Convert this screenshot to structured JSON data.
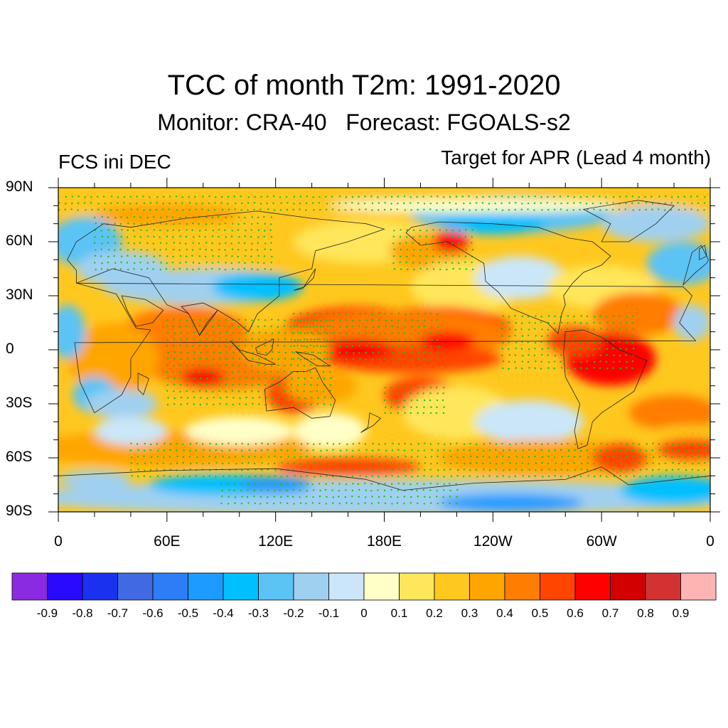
{
  "title": "TCC of month T2m: 1991-2020",
  "subtitle": "Monitor: CRA-40   Forecast: FGOALS-s2",
  "left_string": "FCS ini DEC",
  "right_string": "Target for APR (Lead 4 month)",
  "lat_labels": [
    "90N",
    "60N",
    "30N",
    "0",
    "30S",
    "60S",
    "90S"
  ],
  "lon_labels": [
    "0",
    "60E",
    "120E",
    "180E",
    "120W",
    "60W",
    "0"
  ],
  "colorbar": {
    "colors": [
      "#8a2be2",
      "#2a0aff",
      "#1a32f0",
      "#4169e1",
      "#2e7cf6",
      "#1e9bff",
      "#00bfff",
      "#5cc3f5",
      "#a0d0f0",
      "#cae6f8",
      "#ffffc8",
      "#ffe65a",
      "#ffc81e",
      "#ffa500",
      "#ff7d00",
      "#ff4500",
      "#ff0000",
      "#d20000",
      "#d23232",
      "#ffb4b4"
    ],
    "labels": [
      "-0.9",
      "-0.8",
      "-0.7",
      "-0.6",
      "-0.5",
      "-0.4",
      "-0.3",
      "-0.2",
      "-0.1",
      "0",
      "0.1",
      "0.2",
      "0.3",
      "0.4",
      "0.5",
      "0.6",
      "0.7",
      "0.8",
      "0.9"
    ]
  },
  "significance_dot_color": "#22bb22"
}
